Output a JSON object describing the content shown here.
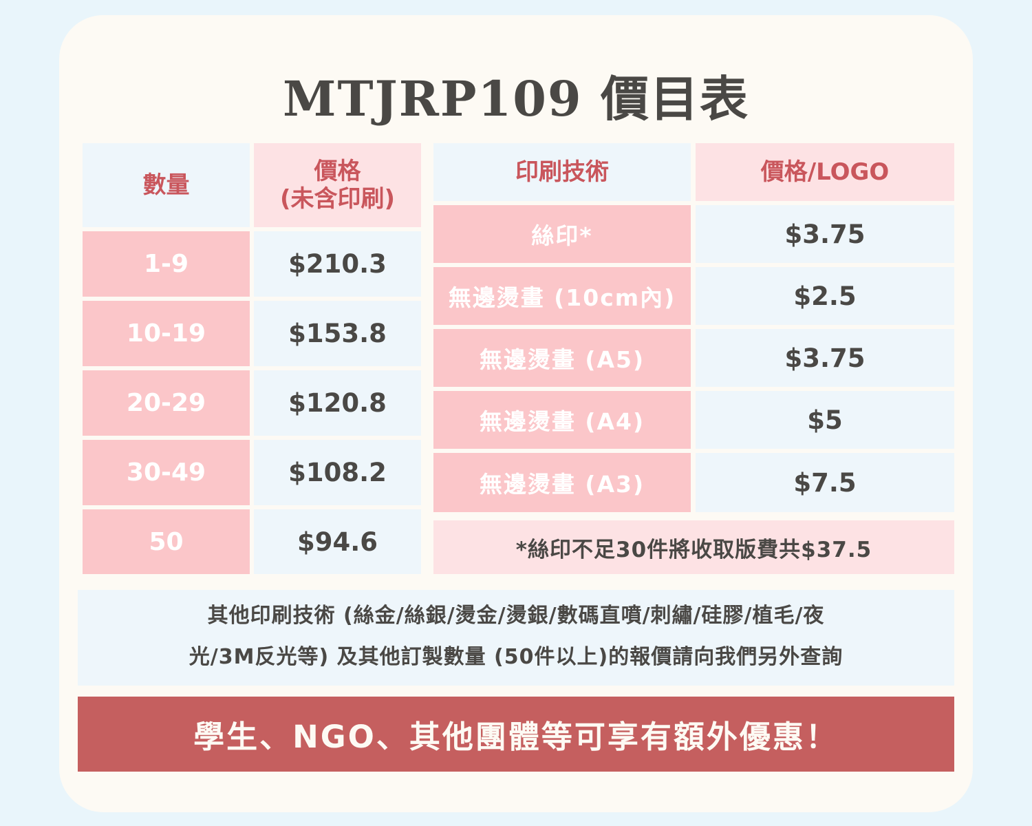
{
  "title": "MTJRP109 價目表",
  "qty_table": {
    "header_qty": "數量",
    "header_price_line1": "價格",
    "header_price_line2": "(未含印刷)",
    "rows": [
      {
        "qty": "1-9",
        "price": "$210.3"
      },
      {
        "qty": "10-19",
        "price": "$153.8"
      },
      {
        "qty": "20-29",
        "price": "$120.8"
      },
      {
        "qty": "30-49",
        "price": "$108.2"
      },
      {
        "qty": "50",
        "price": "$94.6"
      }
    ]
  },
  "print_table": {
    "header_tech": "印刷技術",
    "header_price": "價格/LOGO",
    "rows": [
      {
        "tech": "絲印*",
        "price": "$3.75"
      },
      {
        "tech": "無邊燙畫 (10cm內)",
        "price": "$2.5"
      },
      {
        "tech": "無邊燙畫 (A5)",
        "price": "$3.75"
      },
      {
        "tech": "無邊燙畫 (A4)",
        "price": "$5"
      },
      {
        "tech": "無邊燙畫 (A3)",
        "price": "$7.5"
      }
    ],
    "note": "*絲印不足30件將收取版費共$37.5"
  },
  "other_info": {
    "line1": "其他印刷技術 (絲金/絲銀/燙金/燙銀/數碼直噴/刺繡/硅膠/植毛/夜",
    "line2": "光/3M反光等) 及其他訂製數量 (50件以上)的報價請向我們另外查詢"
  },
  "banner": "學生、NGO、其他團體等可享有額外優惠！"
}
